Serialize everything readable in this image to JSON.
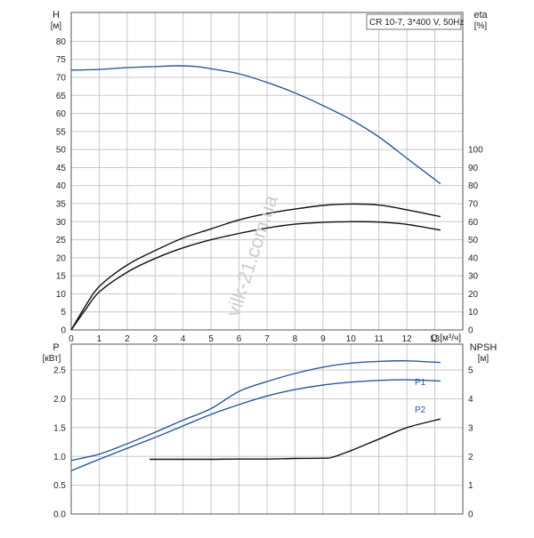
{
  "chart_data": [
    {
      "type": "line",
      "legend_box": "CR 10-7, 3*400 V, 50Hz",
      "watermark": "vilk-21.com.ua",
      "ylabel": "H",
      "yunit": "[м]",
      "ylabel_right": "eta",
      "yunit_right": "[%]",
      "xlabel": "Q [м³/ч]",
      "xlim": [
        0,
        14
      ],
      "ylim": [
        0,
        88
      ],
      "ylim_right": [
        0,
        176
      ],
      "grid": true,
      "x_ticks": [
        "0",
        "1",
        "2",
        "3",
        "4",
        "5",
        "6",
        "7",
        "8",
        "9",
        "10",
        "11",
        "12",
        "13"
      ],
      "y_ticks": [
        "0",
        "5",
        "10",
        "15",
        "20",
        "25",
        "30",
        "35",
        "40",
        "45",
        "50",
        "55",
        "60",
        "65",
        "70",
        "75",
        "80"
      ],
      "y_ticks_right": [
        "0",
        "10",
        "20",
        "30",
        "40",
        "50",
        "60",
        "70",
        "80",
        "90",
        "100"
      ],
      "series": [
        {
          "name": "",
          "axis": "left",
          "color": "#2a5a9c",
          "x": [
            0,
            1,
            2,
            3,
            3.8,
            4.5,
            5,
            6,
            7,
            8,
            9,
            10,
            11,
            12,
            13.2
          ],
          "y": [
            72,
            72.2,
            72.7,
            73,
            73.2,
            73,
            72.4,
            71,
            68.6,
            65.7,
            62.2,
            58.3,
            53.5,
            47.6,
            40.5
          ]
        },
        {
          "name": "",
          "axis": "right",
          "color": "#111111",
          "x": [
            0,
            0.5,
            1,
            2,
            3,
            4,
            5,
            6,
            7,
            8,
            9,
            10,
            11,
            12,
            13.2
          ],
          "y": [
            0,
            13,
            24,
            36,
            44,
            51,
            56,
            61,
            64.5,
            67,
            69,
            69.8,
            69.2,
            66.6,
            62.8
          ]
        },
        {
          "name": "",
          "axis": "right",
          "color": "#111111",
          "x": [
            0,
            0.5,
            1,
            2,
            3,
            4,
            5,
            6,
            7,
            8,
            9,
            10,
            11,
            12,
            13.2
          ],
          "y": [
            0,
            11,
            21,
            32,
            39.6,
            45.5,
            50,
            53.5,
            56.5,
            58.6,
            59.6,
            60,
            59.8,
            58.5,
            55.3
          ]
        }
      ]
    },
    {
      "type": "line",
      "ylabel": "P",
      "yunit": "[кВт]",
      "ylabel_right": "NPSH",
      "yunit_right": "[м]",
      "xlim": [
        0,
        14
      ],
      "ylim": [
        0,
        2.95
      ],
      "ylim_right": [
        0,
        5.9
      ],
      "grid": true,
      "y_ticks": [
        "0.0",
        "0.5",
        "1.0",
        "1.5",
        "2.0",
        "2.5"
      ],
      "y_ticks_right": [
        "0",
        "1",
        "2",
        "3",
        "4",
        "5"
      ],
      "series": [
        {
          "name": "P1",
          "axis": "left",
          "color": "#2a5a9c",
          "x": [
            0,
            1,
            2,
            3,
            4,
            5,
            6,
            7,
            8,
            9,
            10,
            11,
            12,
            13.2
          ],
          "y": [
            0.93,
            1.04,
            1.22,
            1.42,
            1.63,
            1.83,
            2.13,
            2.3,
            2.44,
            2.55,
            2.62,
            2.65,
            2.66,
            2.63
          ]
        },
        {
          "name": "P2",
          "axis": "left",
          "color": "#2a5a9c",
          "x": [
            0,
            1,
            2,
            3,
            4,
            5,
            6,
            7,
            8,
            9,
            10,
            11,
            12,
            13.2
          ],
          "y": [
            0.75,
            0.95,
            1.14,
            1.33,
            1.53,
            1.73,
            1.9,
            2.05,
            2.16,
            2.24,
            2.29,
            2.32,
            2.33,
            2.31
          ]
        },
        {
          "name": "",
          "axis": "right",
          "color": "#111111",
          "x": [
            2.8,
            4,
            5,
            6,
            7,
            8,
            9,
            9.3,
            10,
            11,
            12,
            13.2
          ],
          "y": [
            1.9,
            1.9,
            1.9,
            1.91,
            1.91,
            1.93,
            1.94,
            1.96,
            2.2,
            2.6,
            3.0,
            3.3
          ]
        }
      ]
    }
  ]
}
